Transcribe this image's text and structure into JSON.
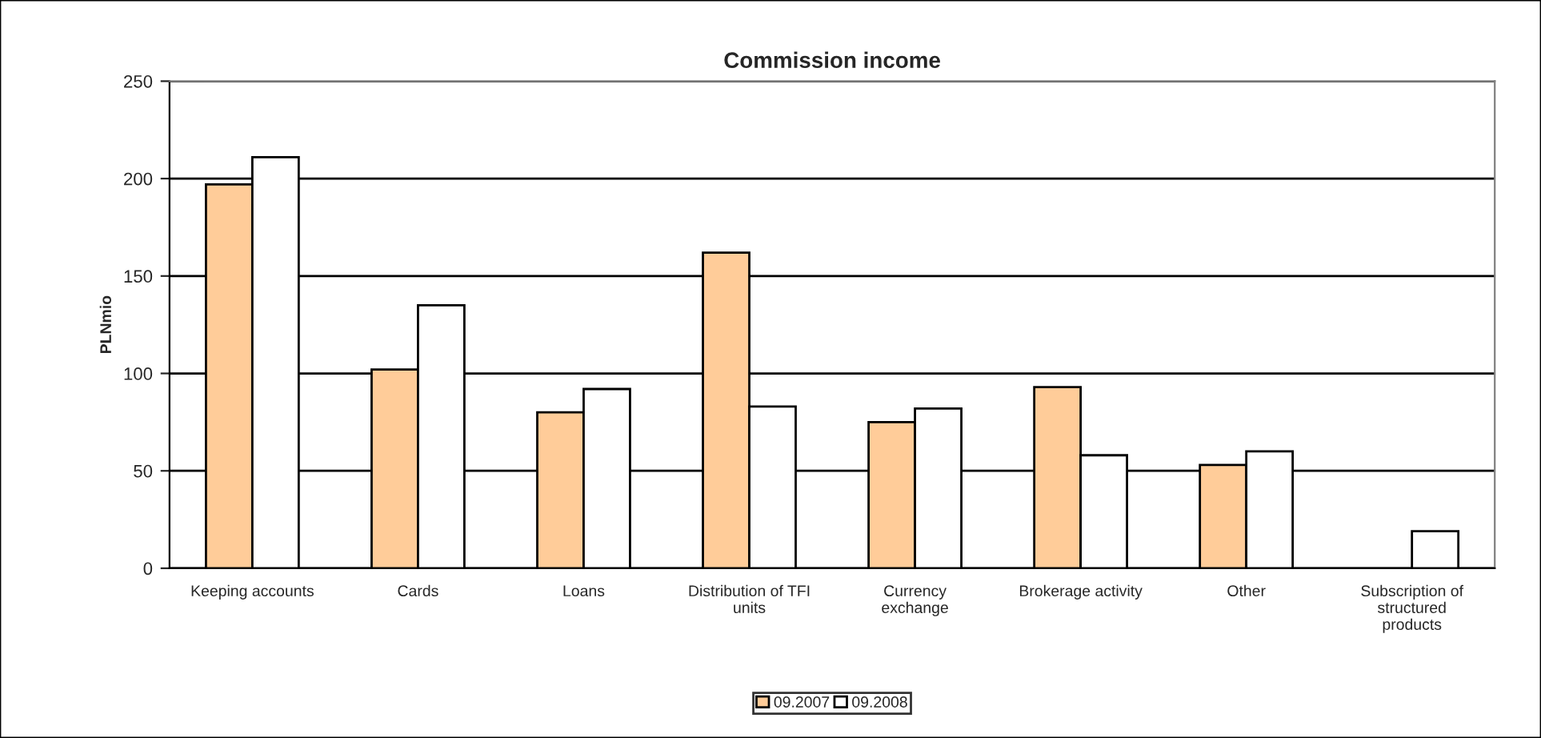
{
  "chart_data": {
    "type": "bar",
    "title": "Commission income",
    "ylabel": "PLNmio",
    "categories": [
      "Keeping accounts",
      "Cards",
      "Loans",
      "Distribution of TFI\nunits",
      "Currency\nexchange",
      "Brokerage activity",
      "Other",
      "Subscription of\nstructured\nproducts"
    ],
    "series": [
      {
        "name": "09.2007",
        "color": "#ffcc99",
        "values": [
          197,
          102,
          80,
          162,
          75,
          93,
          53,
          null
        ]
      },
      {
        "name": "09.2008",
        "color": "#ffffff",
        "values": [
          211,
          135,
          92,
          83,
          82,
          58,
          60,
          19
        ]
      }
    ],
    "ylim": [
      0,
      250
    ],
    "yticks": [
      0,
      50,
      100,
      150,
      200,
      250
    ],
    "grid": "y",
    "legend": "bottom"
  }
}
